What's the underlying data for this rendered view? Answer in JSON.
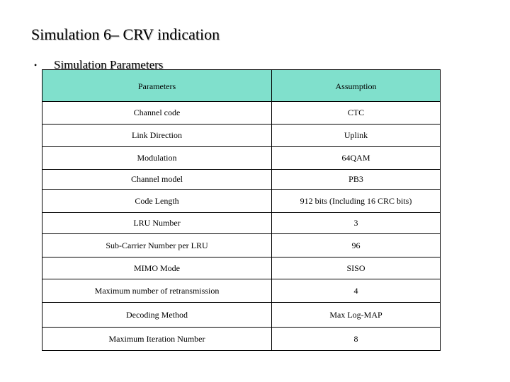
{
  "slide": {
    "title": "Simulation 6– CRV indication",
    "bullet": "•",
    "subtitle": "Simulation Parameters"
  },
  "table": {
    "header_color": "#80e0cc",
    "headers": [
      "Parameters",
      "Assumption"
    ],
    "rows": [
      {
        "parameter": "Channel code",
        "assumption": "CTC"
      },
      {
        "parameter": "Link Direction",
        "assumption": "Uplink"
      },
      {
        "parameter": "Modulation",
        "assumption": "64QAM"
      },
      {
        "parameter": "Channel model",
        "assumption": "PB3"
      },
      {
        "parameter": "Code Length",
        "assumption": "912 bits (Including 16 CRC bits)"
      },
      {
        "parameter": "LRU Number",
        "assumption": "3"
      },
      {
        "parameter": "Sub-Carrier Number per LRU",
        "assumption": "96"
      },
      {
        "parameter": "MIMO Mode",
        "assumption": "SISO"
      },
      {
        "parameter": "Maximum number of retransmission",
        "assumption": "4"
      },
      {
        "parameter": "Decoding Method",
        "assumption": "Max Log-MAP"
      },
      {
        "parameter": "Maximum Iteration Number",
        "assumption": "8"
      }
    ]
  }
}
